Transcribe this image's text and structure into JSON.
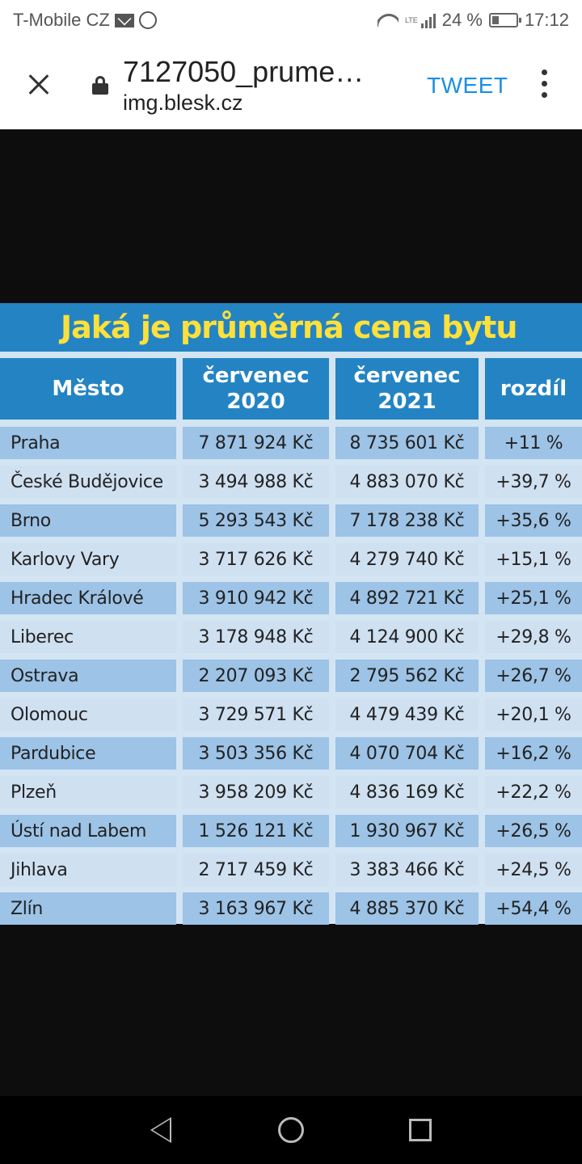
{
  "status_bar": {
    "carrier": "T-Mobile CZ",
    "network": "LTE",
    "battery": "24 %",
    "time": "17:12"
  },
  "toolbar": {
    "title": "7127050_prume…",
    "domain": "img.blesk.cz",
    "tweet_label": "TWEET"
  },
  "table": {
    "title": "Jaká je průměrná cena bytu",
    "headers": {
      "city": "Město",
      "col1_line1": "červenec",
      "col1_line2": "2020",
      "col2_line1": "červenec",
      "col2_line2": "2021",
      "diff": "rozdíl"
    },
    "rows": [
      {
        "city": "Praha",
        "v2020": "7 871 924 Kč",
        "v2021": "8 735 601 Kč",
        "diff": "+11 %"
      },
      {
        "city": "České Budějovice",
        "v2020": "3 494 988 Kč",
        "v2021": "4 883 070 Kč",
        "diff": "+39,7 %"
      },
      {
        "city": "Brno",
        "v2020": "5 293 543 Kč",
        "v2021": "7 178 238 Kč",
        "diff": "+35,6 %"
      },
      {
        "city": "Karlovy Vary",
        "v2020": "3 717 626 Kč",
        "v2021": "4 279 740 Kč",
        "diff": "+15,1 %"
      },
      {
        "city": "Hradec Králové",
        "v2020": "3 910 942 Kč",
        "v2021": "4 892 721 Kč",
        "diff": "+25,1 %"
      },
      {
        "city": "Liberec",
        "v2020": "3 178 948 Kč",
        "v2021": "4 124 900 Kč",
        "diff": "+29,8 %"
      },
      {
        "city": "Ostrava",
        "v2020": "2 207 093 Kč",
        "v2021": "2 795 562 Kč",
        "diff": "+26,7 %"
      },
      {
        "city": "Olomouc",
        "v2020": "3 729 571 Kč",
        "v2021": "4 479 439 Kč",
        "diff": "+20,1 %"
      },
      {
        "city": "Pardubice",
        "v2020": "3 503 356 Kč",
        "v2021": "4 070 704 Kč",
        "diff": "+16,2 %"
      },
      {
        "city": "Plzeň",
        "v2020": "3 958 209 Kč",
        "v2021": "4 836 169 Kč",
        "diff": "+22,2 %"
      },
      {
        "city": "Ústí nad Labem",
        "v2020": "1 526 121 Kč",
        "v2021": "1 930 967 Kč",
        "diff": "+26,5 %"
      },
      {
        "city": "Jihlava",
        "v2020": "2 717 459 Kč",
        "v2021": "3 383 466 Kč",
        "diff": "+24,5 %"
      },
      {
        "city": "Zlín",
        "v2020": "3 163 967 Kč",
        "v2021": "4 885 370 Kč",
        "diff": "+54,4 %"
      }
    ]
  },
  "colors": {
    "table_blue": "#2484c3",
    "title_yellow": "#fde03b",
    "row_dark": "#9dc3e6",
    "row_light": "#cfe0f1",
    "tweet_blue": "#1a8fe3"
  },
  "icons": [
    "mail-icon",
    "whatsapp-icon",
    "wifi-icon",
    "signal-icon",
    "battery-icon",
    "close-icon",
    "lock-icon",
    "more-vert-icon",
    "back-icon",
    "home-icon",
    "recents-icon"
  ]
}
